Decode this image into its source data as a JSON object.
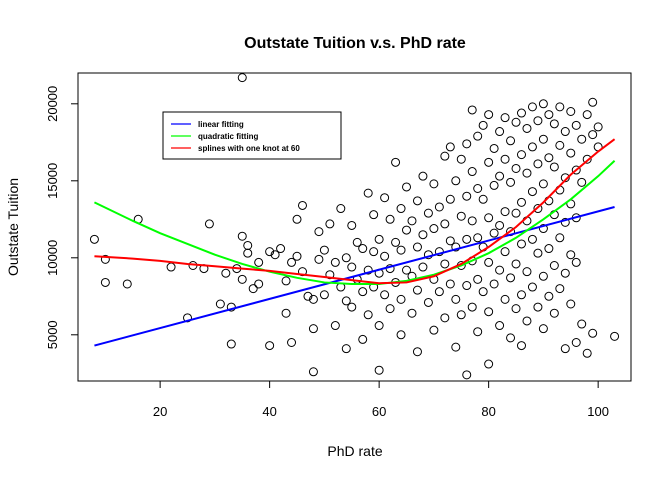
{
  "chart_data": {
    "type": "scatter",
    "title": "Outstate Tuition v.s. PhD rate",
    "xlabel": "PhD rate",
    "ylabel": "Outstate Tuition",
    "xlim": [
      5,
      106
    ],
    "ylim": [
      2000,
      22000
    ],
    "xticks": [
      20,
      40,
      60,
      80,
      100
    ],
    "yticks": [
      5000,
      10000,
      15000,
      20000
    ],
    "grid": false,
    "legend_position": "top-left",
    "points": [
      [
        8,
        11200
      ],
      [
        10,
        9900
      ],
      [
        10,
        8400
      ],
      [
        14,
        8300
      ],
      [
        16,
        12500
      ],
      [
        22,
        9400
      ],
      [
        25,
        6100
      ],
      [
        26,
        9500
      ],
      [
        28,
        9300
      ],
      [
        29,
        12200
      ],
      [
        31,
        7000
      ],
      [
        32,
        9000
      ],
      [
        33,
        4400
      ],
      [
        33,
        6800
      ],
      [
        34,
        9300
      ],
      [
        35,
        21700
      ],
      [
        35,
        11400
      ],
      [
        35,
        8600
      ],
      [
        36,
        10800
      ],
      [
        36,
        10300
      ],
      [
        37,
        8000
      ],
      [
        38,
        9700
      ],
      [
        38,
        8300
      ],
      [
        40,
        4300
      ],
      [
        40,
        10400
      ],
      [
        41,
        10200
      ],
      [
        42,
        10600
      ],
      [
        43,
        6400
      ],
      [
        43,
        8500
      ],
      [
        44,
        9700
      ],
      [
        44,
        4500
      ],
      [
        45,
        12500
      ],
      [
        45,
        10100
      ],
      [
        46,
        13400
      ],
      [
        46,
        9100
      ],
      [
        47,
        7500
      ],
      [
        48,
        7300
      ],
      [
        48,
        5400
      ],
      [
        48,
        2600
      ],
      [
        49,
        9900
      ],
      [
        49,
        11700
      ],
      [
        50,
        10500
      ],
      [
        50,
        7600
      ],
      [
        51,
        12200
      ],
      [
        51,
        8900
      ],
      [
        52,
        9700
      ],
      [
        52,
        5600
      ],
      [
        53,
        13200
      ],
      [
        53,
        8100
      ],
      [
        54,
        10000
      ],
      [
        54,
        7200
      ],
      [
        54,
        4100
      ],
      [
        55,
        12100
      ],
      [
        55,
        9400
      ],
      [
        55,
        6800
      ],
      [
        56,
        11000
      ],
      [
        56,
        8600
      ],
      [
        57,
        10600
      ],
      [
        57,
        7800
      ],
      [
        57,
        4700
      ],
      [
        58,
        14200
      ],
      [
        58,
        9200
      ],
      [
        58,
        6300
      ],
      [
        59,
        12800
      ],
      [
        59,
        10400
      ],
      [
        59,
        8100
      ],
      [
        60,
        11200
      ],
      [
        60,
        9000
      ],
      [
        60,
        5600
      ],
      [
        60,
        2700
      ],
      [
        61,
        13900
      ],
      [
        61,
        10100
      ],
      [
        61,
        7600
      ],
      [
        62,
        12500
      ],
      [
        62,
        9300
      ],
      [
        62,
        6700
      ],
      [
        63,
        16200
      ],
      [
        63,
        11000
      ],
      [
        63,
        8400
      ],
      [
        64,
        13200
      ],
      [
        64,
        10500
      ],
      [
        64,
        7300
      ],
      [
        64,
        5000
      ],
      [
        65,
        14600
      ],
      [
        65,
        11800
      ],
      [
        65,
        9200
      ],
      [
        66,
        12400
      ],
      [
        66,
        8800
      ],
      [
        66,
        6400
      ],
      [
        67,
        13700
      ],
      [
        67,
        10700
      ],
      [
        67,
        7900
      ],
      [
        67,
        3900
      ],
      [
        68,
        15300
      ],
      [
        68,
        11500
      ],
      [
        68,
        9400
      ],
      [
        69,
        12900
      ],
      [
        69,
        10200
      ],
      [
        69,
        7100
      ],
      [
        70,
        14800
      ],
      [
        70,
        11900
      ],
      [
        70,
        8600
      ],
      [
        70,
        5300
      ],
      [
        71,
        13300
      ],
      [
        71,
        10400
      ],
      [
        71,
        7800
      ],
      [
        72,
        16600
      ],
      [
        72,
        12200
      ],
      [
        72,
        9600
      ],
      [
        72,
        6100
      ],
      [
        73,
        17200
      ],
      [
        73,
        13800
      ],
      [
        73,
        11100
      ],
      [
        73,
        8300
      ],
      [
        74,
        15000
      ],
      [
        74,
        10700
      ],
      [
        74,
        7300
      ],
      [
        74,
        4200
      ],
      [
        75,
        16400
      ],
      [
        75,
        12700
      ],
      [
        75,
        9500
      ],
      [
        75,
        6300
      ],
      [
        76,
        17400
      ],
      [
        76,
        14000
      ],
      [
        76,
        11200
      ],
      [
        76,
        8200
      ],
      [
        76,
        2400
      ],
      [
        77,
        19600
      ],
      [
        77,
        15600
      ],
      [
        77,
        12400
      ],
      [
        77,
        9800
      ],
      [
        77,
        6800
      ],
      [
        78,
        17900
      ],
      [
        78,
        14500
      ],
      [
        78,
        11300
      ],
      [
        78,
        8600
      ],
      [
        78,
        5200
      ],
      [
        79,
        18600
      ],
      [
        79,
        13800
      ],
      [
        79,
        10700
      ],
      [
        79,
        7800
      ],
      [
        80,
        19300
      ],
      [
        80,
        16200
      ],
      [
        80,
        12600
      ],
      [
        80,
        9700
      ],
      [
        80,
        6500
      ],
      [
        80,
        3100
      ],
      [
        81,
        17100
      ],
      [
        81,
        14700
      ],
      [
        81,
        11600
      ],
      [
        81,
        8300
      ],
      [
        82,
        18200
      ],
      [
        82,
        15300
      ],
      [
        82,
        12100
      ],
      [
        82,
        9200
      ],
      [
        82,
        5600
      ],
      [
        83,
        19100
      ],
      [
        83,
        16400
      ],
      [
        83,
        13000
      ],
      [
        83,
        10400
      ],
      [
        83,
        7300
      ],
      [
        84,
        17600
      ],
      [
        84,
        14900
      ],
      [
        84,
        11700
      ],
      [
        84,
        8700
      ],
      [
        84,
        4800
      ],
      [
        85,
        18800
      ],
      [
        85,
        15800
      ],
      [
        85,
        12900
      ],
      [
        85,
        9600
      ],
      [
        85,
        6700
      ],
      [
        86,
        19400
      ],
      [
        86,
        16700
      ],
      [
        86,
        13600
      ],
      [
        86,
        10900
      ],
      [
        86,
        7600
      ],
      [
        86,
        4300
      ],
      [
        87,
        18400
      ],
      [
        87,
        15500
      ],
      [
        87,
        12400
      ],
      [
        87,
        9100
      ],
      [
        87,
        5900
      ],
      [
        88,
        19800
      ],
      [
        88,
        17200
      ],
      [
        88,
        14300
      ],
      [
        88,
        11200
      ],
      [
        88,
        8100
      ],
      [
        89,
        18900
      ],
      [
        89,
        16100
      ],
      [
        89,
        13200
      ],
      [
        89,
        10300
      ],
      [
        89,
        6800
      ],
      [
        90,
        20000
      ],
      [
        90,
        17700
      ],
      [
        90,
        14800
      ],
      [
        90,
        11900
      ],
      [
        90,
        8800
      ],
      [
        90,
        5400
      ],
      [
        91,
        19300
      ],
      [
        91,
        16500
      ],
      [
        91,
        13700
      ],
      [
        91,
        10600
      ],
      [
        91,
        7500
      ],
      [
        92,
        18700
      ],
      [
        92,
        15900
      ],
      [
        92,
        12800
      ],
      [
        92,
        9500
      ],
      [
        92,
        6400
      ],
      [
        93,
        19800
      ],
      [
        93,
        17300
      ],
      [
        93,
        14400
      ],
      [
        93,
        11300
      ],
      [
        93,
        8000
      ],
      [
        94,
        18200
      ],
      [
        94,
        15200
      ],
      [
        94,
        12300
      ],
      [
        94,
        9000
      ],
      [
        94,
        4100
      ],
      [
        95,
        19500
      ],
      [
        95,
        16800
      ],
      [
        95,
        13500
      ],
      [
        95,
        10200
      ],
      [
        95,
        7000
      ],
      [
        96,
        18600
      ],
      [
        96,
        15700
      ],
      [
        96,
        12600
      ],
      [
        96,
        9700
      ],
      [
        96,
        4500
      ],
      [
        97,
        17700
      ],
      [
        97,
        14900
      ],
      [
        97,
        5700
      ],
      [
        98,
        19300
      ],
      [
        98,
        16400
      ],
      [
        98,
        3800
      ],
      [
        99,
        20100
      ],
      [
        99,
        18000
      ],
      [
        99,
        5100
      ],
      [
        100,
        17200
      ],
      [
        100,
        18500
      ],
      [
        103,
        4900
      ]
    ],
    "series": [
      {
        "name": "linear fitting",
        "color": "#0000ff",
        "x": [
          8,
          103
        ],
        "y": [
          4300,
          13300
        ]
      },
      {
        "name": "quadratic fitting",
        "color": "#00ff00",
        "x": [
          8,
          15,
          20,
          25,
          30,
          35,
          40,
          45,
          50,
          55,
          60,
          65,
          70,
          75,
          80,
          85,
          90,
          95,
          100,
          103
        ],
        "y": [
          13600,
          12400,
          11600,
          10900,
          10200,
          9600,
          9100,
          8700,
          8400,
          8300,
          8300,
          8500,
          8900,
          9500,
          10300,
          11300,
          12500,
          13800,
          15300,
          16300
        ]
      },
      {
        "name": "splines with one knot at 60",
        "color": "#ff0000",
        "x": [
          8,
          15,
          20,
          25,
          30,
          35,
          40,
          45,
          50,
          55,
          60,
          65,
          70,
          75,
          80,
          85,
          90,
          95,
          100,
          103
        ],
        "y": [
          10100,
          9950,
          9800,
          9600,
          9450,
          9300,
          9150,
          8950,
          8750,
          8550,
          8350,
          8400,
          8800,
          9600,
          10700,
          12000,
          13600,
          15400,
          16900,
          17700
        ]
      }
    ]
  }
}
